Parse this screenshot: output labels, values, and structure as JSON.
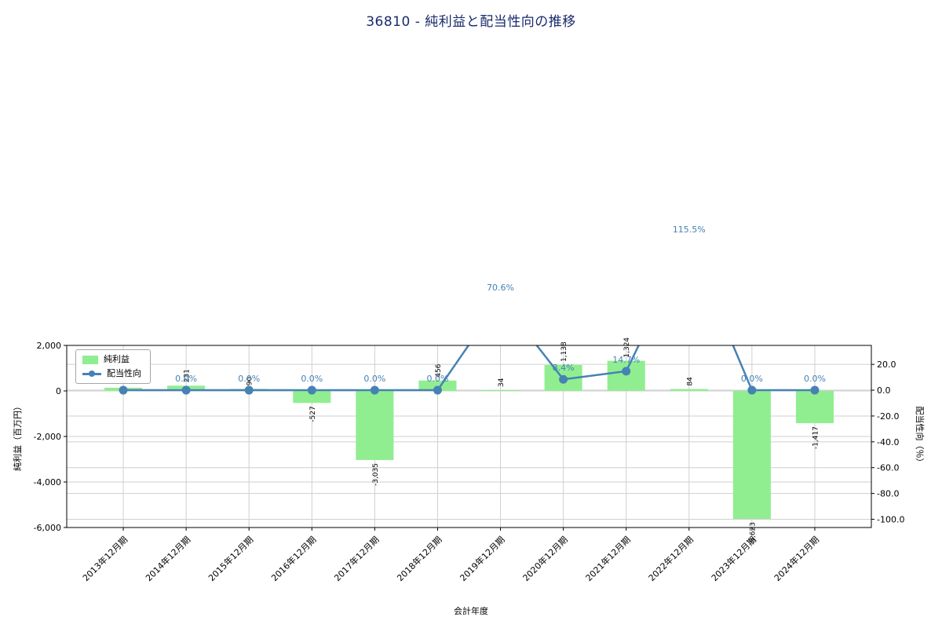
{
  "colors": {
    "bar": "#90ee90",
    "line": "#4682b4",
    "annotation": "#4682b4",
    "grid": "#cfcfcf",
    "axis": "#000000",
    "title": "#1a2a6c"
  },
  "chart_data": {
    "type": "bar",
    "title": "36810 - 純利益と配当性向の推移",
    "xlabel": "会計年度",
    "ylabel": "純利益（百万円）",
    "ylabel_right": "配当性向（％）",
    "categories": [
      "2013年12月期",
      "2014年12月期",
      "2015年12月期",
      "2016年12月期",
      "2017年12月期",
      "2018年12月期",
      "2019年12月期",
      "2020年12月期",
      "2021年12月期",
      "2022年12月期",
      "2023年12月期",
      "2024年12月期"
    ],
    "series": [
      {
        "name": "純利益",
        "type": "bar",
        "values": [
          140,
          231,
          90,
          -527,
          -3035,
          456,
          34,
          1138,
          1324,
          84,
          -5623,
          -1417
        ],
        "labels": [
          "140",
          "231",
          "90",
          "-527",
          "-3,035",
          "456",
          "34",
          "1,138",
          "1,324",
          "84",
          "-5,623",
          "-1,417"
        ]
      },
      {
        "name": "配当性向",
        "type": "line",
        "values": [
          0.0,
          0.0,
          0.0,
          0.0,
          0.0,
          0.0,
          70.6,
          8.4,
          14.7,
          115.5,
          0.0,
          0.0
        ],
        "labels": [
          "0.0%",
          "0.0%",
          "0.0%",
          "0.0%",
          "0.0%",
          "0.0%",
          "70.6%",
          "8.4%",
          "14.7%",
          "115.5%",
          "0.0%",
          "0.0%"
        ]
      }
    ],
    "ylim_left": [
      -6000,
      2000
    ],
    "yticks_left": {
      "values": [
        2000,
        0,
        -2000,
        -4000,
        -6000
      ],
      "labels": [
        "2,000",
        "0",
        "-2,000",
        "-4,000",
        "-6,000"
      ]
    },
    "ylim_right": [
      -106.4,
      34.7
    ],
    "yticks_right": {
      "values": [
        20,
        0,
        -20,
        -40,
        -60,
        -80,
        -100
      ],
      "labels": [
        "20.0",
        "0.0",
        "-20.0",
        "-40.0",
        "-60.0",
        "-80.0",
        "-100.0"
      ]
    },
    "grid": true,
    "legend_position": "upper left"
  }
}
